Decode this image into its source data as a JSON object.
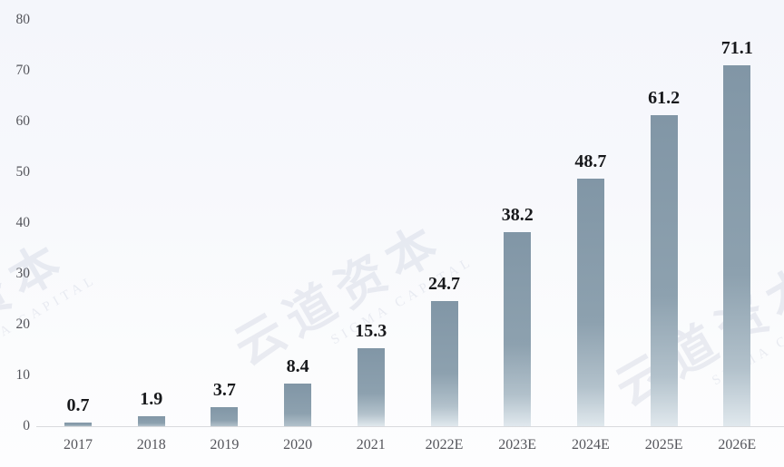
{
  "chart_data": {
    "type": "bar",
    "title": "",
    "xlabel": "",
    "ylabel": "",
    "categories": [
      "2017",
      "2018",
      "2019",
      "2020",
      "2021",
      "2022E",
      "2023E",
      "2024E",
      "2025E",
      "2026E"
    ],
    "values": [
      0.7,
      1.9,
      3.7,
      8.4,
      15.3,
      24.7,
      38.2,
      48.7,
      61.2,
      71.1
    ],
    "value_labels": [
      "0.7",
      "1.9",
      "3.7",
      "8.4",
      "15.3",
      "24.7",
      "38.2",
      "48.7",
      "61.2",
      "71.1"
    ],
    "ylim": [
      0,
      80
    ],
    "yticks": [
      0,
      10,
      20,
      30,
      40,
      50,
      60,
      70,
      80
    ],
    "grid": false,
    "legend": null,
    "colors": {
      "bar_top": "#8196a6",
      "bar_mid": "#8da1af",
      "bar_low": "#b2c1cb",
      "bar_bottom": "#e0e8ed",
      "value_label": "#17181b",
      "tick_label": "#54555b",
      "axis_line": "#d9dadd",
      "background_top": "#f4f6fb",
      "background_bottom": "#fdfdfe"
    }
  },
  "watermark": {
    "zh_text": "云道资本",
    "en_text": "SIGMA CAPITAL",
    "color": "#8791b4"
  }
}
